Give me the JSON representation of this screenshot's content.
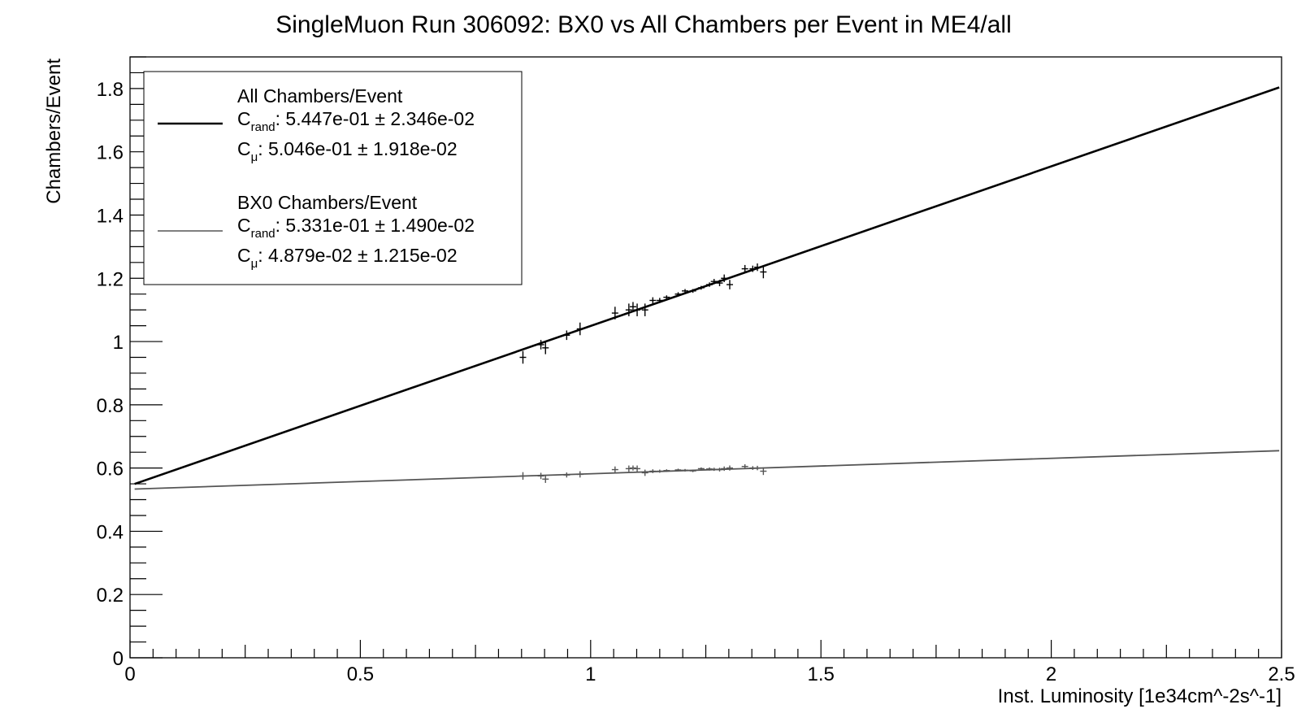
{
  "chart_data": {
    "type": "scatter",
    "title": "SingleMuon Run 306092: BX0 vs All Chambers per Event in ME4/all",
    "xlabel": "Inst. Luminosity [1e34cm^-2s^-1]",
    "ylabel": "Chambers/Event",
    "xlim": [
      0,
      2.5
    ],
    "ylim": [
      0,
      1.9
    ],
    "x_ticks": [
      "0",
      "0.5",
      "1",
      "1.5",
      "2",
      "2.5"
    ],
    "y_ticks": [
      "0",
      "0.2",
      "0.4",
      "0.6",
      "0.8",
      "1",
      "1.2",
      "1.4",
      "1.6",
      "1.8"
    ],
    "grid": false,
    "legend_position": "top-left",
    "colors": {
      "all": "#000000",
      "bx0": "#555555"
    },
    "legend": [
      {
        "name": "All Chambers/Event",
        "rand_label": "C",
        "rand_sub": "rand",
        "rand_value": ": 5.447e-01 ± 2.346e-02",
        "mu_label": "C",
        "mu_sub": "μ",
        "mu_value": ": 5.046e-01 ± 1.918e-02"
      },
      {
        "name": "BX0 Chambers/Event",
        "rand_label": "C",
        "rand_sub": "rand",
        "rand_value": ": 5.331e-01 ± 1.490e-02",
        "mu_label": "C",
        "mu_sub": "μ",
        "mu_value": ": 4.879e-02  ± 1.215e-02"
      }
    ],
    "fits": [
      {
        "series": "All Chambers/Event",
        "intercept": 0.5447,
        "slope": 0.5046
      },
      {
        "series": "BX0 Chambers/Event",
        "intercept": 0.5331,
        "slope": 0.04879
      }
    ],
    "series": [
      {
        "name": "All Chambers/Event",
        "points": [
          {
            "x": 0.853,
            "y": 0.95,
            "yerr": 0.02
          },
          {
            "x": 0.892,
            "y": 0.99,
            "yerr": 0.015
          },
          {
            "x": 0.902,
            "y": 0.98,
            "yerr": 0.02
          },
          {
            "x": 0.948,
            "y": 1.02,
            "yerr": 0.015
          },
          {
            "x": 0.977,
            "y": 1.04,
            "yerr": 0.02
          },
          {
            "x": 1.053,
            "y": 1.09,
            "yerr": 0.02
          },
          {
            "x": 1.083,
            "y": 1.1,
            "yerr": 0.02
          },
          {
            "x": 1.092,
            "y": 1.11,
            "yerr": 0.015
          },
          {
            "x": 1.101,
            "y": 1.1,
            "yerr": 0.02
          },
          {
            "x": 1.118,
            "y": 1.1,
            "yerr": 0.02
          },
          {
            "x": 1.135,
            "y": 1.13,
            "yerr": 0.01
          },
          {
            "x": 1.15,
            "y": 1.13,
            "yerr": 0.008
          },
          {
            "x": 1.165,
            "y": 1.14,
            "yerr": 0.006
          },
          {
            "x": 1.19,
            "y": 1.15,
            "yerr": 0.006
          },
          {
            "x": 1.205,
            "y": 1.16,
            "yerr": 0.006
          },
          {
            "x": 1.222,
            "y": 1.16,
            "yerr": 0.006
          },
          {
            "x": 1.24,
            "y": 1.17,
            "yerr": 0.006
          },
          {
            "x": 1.258,
            "y": 1.18,
            "yerr": 0.007
          },
          {
            "x": 1.268,
            "y": 1.19,
            "yerr": 0.008
          },
          {
            "x": 1.28,
            "y": 1.185,
            "yerr": 0.01
          },
          {
            "x": 1.29,
            "y": 1.2,
            "yerr": 0.012
          },
          {
            "x": 1.302,
            "y": 1.18,
            "yerr": 0.015
          },
          {
            "x": 1.335,
            "y": 1.23,
            "yerr": 0.012
          },
          {
            "x": 1.352,
            "y": 1.23,
            "yerr": 0.01
          },
          {
            "x": 1.362,
            "y": 1.235,
            "yerr": 0.012
          },
          {
            "x": 1.375,
            "y": 1.22,
            "yerr": 0.02
          }
        ]
      },
      {
        "name": "BX0 Chambers/Event",
        "points": [
          {
            "x": 0.853,
            "y": 0.575,
            "yerr": 0.012
          },
          {
            "x": 0.892,
            "y": 0.575,
            "yerr": 0.01
          },
          {
            "x": 0.902,
            "y": 0.565,
            "yerr": 0.012
          },
          {
            "x": 0.948,
            "y": 0.578,
            "yerr": 0.008
          },
          {
            "x": 0.977,
            "y": 0.58,
            "yerr": 0.01
          },
          {
            "x": 1.053,
            "y": 0.595,
            "yerr": 0.01
          },
          {
            "x": 1.083,
            "y": 0.598,
            "yerr": 0.01
          },
          {
            "x": 1.092,
            "y": 0.6,
            "yerr": 0.008
          },
          {
            "x": 1.101,
            "y": 0.598,
            "yerr": 0.01
          },
          {
            "x": 1.118,
            "y": 0.585,
            "yerr": 0.01
          },
          {
            "x": 1.135,
            "y": 0.59,
            "yerr": 0.006
          },
          {
            "x": 1.15,
            "y": 0.59,
            "yerr": 0.005
          },
          {
            "x": 1.165,
            "y": 0.592,
            "yerr": 0.004
          },
          {
            "x": 1.19,
            "y": 0.594,
            "yerr": 0.004
          },
          {
            "x": 1.205,
            "y": 0.593,
            "yerr": 0.004
          },
          {
            "x": 1.222,
            "y": 0.591,
            "yerr": 0.004
          },
          {
            "x": 1.24,
            "y": 0.598,
            "yerr": 0.004
          },
          {
            "x": 1.258,
            "y": 0.597,
            "yerr": 0.005
          },
          {
            "x": 1.268,
            "y": 0.596,
            "yerr": 0.005
          },
          {
            "x": 1.28,
            "y": 0.595,
            "yerr": 0.006
          },
          {
            "x": 1.29,
            "y": 0.598,
            "yerr": 0.007
          },
          {
            "x": 1.302,
            "y": 0.6,
            "yerr": 0.008
          },
          {
            "x": 1.335,
            "y": 0.605,
            "yerr": 0.007
          },
          {
            "x": 1.352,
            "y": 0.6,
            "yerr": 0.006
          },
          {
            "x": 1.362,
            "y": 0.6,
            "yerr": 0.007
          },
          {
            "x": 1.375,
            "y": 0.59,
            "yerr": 0.012
          }
        ]
      }
    ]
  }
}
